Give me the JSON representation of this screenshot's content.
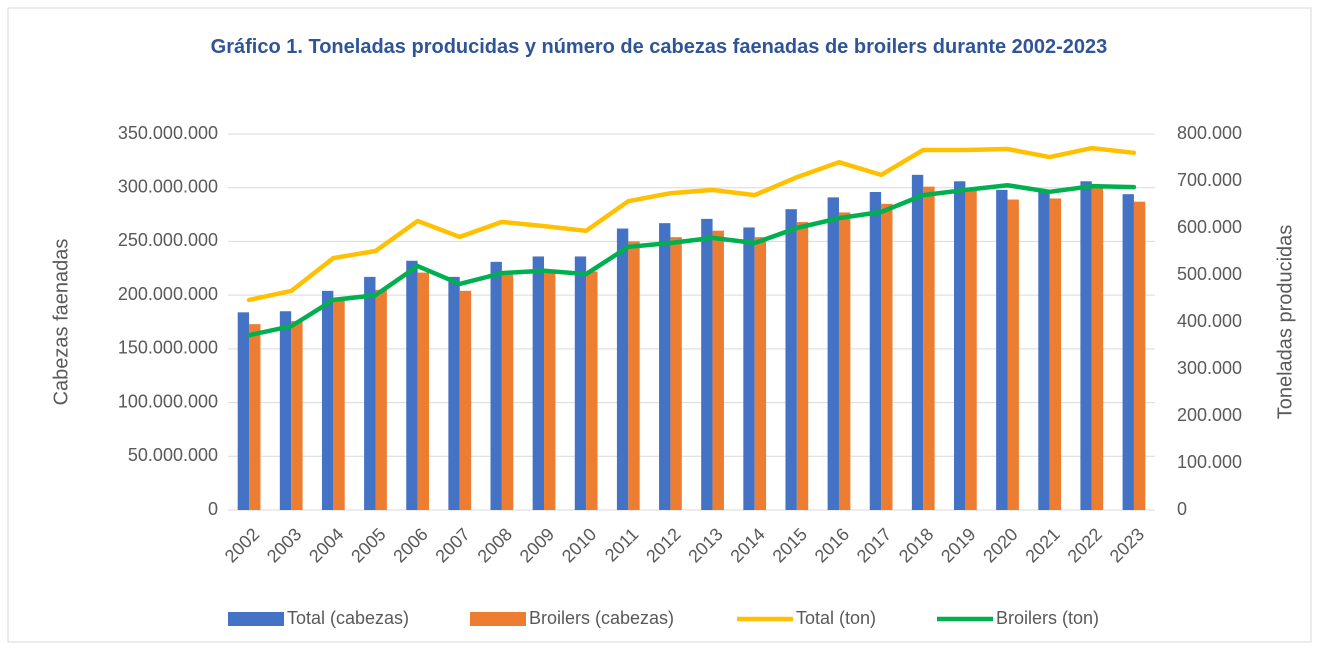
{
  "chart_data": {
    "type": "bar",
    "title": "Gráfico 1. Toneladas producidas y número de cabezas faenadas de broilers durante 2002-2023",
    "ylabel": "Cabezas faenadas",
    "y2label": "Toneladas producidas",
    "categories": [
      "2002",
      "2003",
      "2004",
      "2005",
      "2006",
      "2007",
      "2008",
      "2009",
      "2010",
      "2011",
      "2012",
      "2013",
      "2014",
      "2015",
      "2016",
      "2017",
      "2018",
      "2019",
      "2020",
      "2021",
      "2022",
      "2023"
    ],
    "ylim": [
      0,
      350000000
    ],
    "yticks": [
      0,
      {
        "value": 50000000,
        "label": "50.000.000"
      },
      {
        "value": 100000000,
        "label": "100.000.000"
      },
      {
        "value": 150000000,
        "label": "150.000.000"
      },
      {
        "value": 200000000,
        "label": "200.000.000"
      },
      {
        "value": 250000000,
        "label": "250.000.000"
      },
      {
        "value": 300000000,
        "label": "300.000.000"
      },
      {
        "value": 350000000,
        "label": "350.000.000"
      }
    ],
    "y2lim": [
      0,
      800000
    ],
    "y2ticks": [
      0,
      {
        "value": 100000,
        "label": "100.000"
      },
      {
        "value": 200000,
        "label": "200.000"
      },
      {
        "value": 300000,
        "label": "300.000"
      },
      {
        "value": 400000,
        "label": "400.000"
      },
      {
        "value": 500000,
        "label": "500.000"
      },
      {
        "value": 600000,
        "label": "600.000"
      },
      {
        "value": 700000,
        "label": "700.000"
      },
      {
        "value": 800000,
        "label": "800.000"
      }
    ],
    "grid": true,
    "legend": "bottom",
    "series": [
      {
        "name": "Total (cabezas)",
        "type": "bar",
        "color": "#4472c4",
        "values": [
          184000000,
          185000000,
          204000000,
          217000000,
          232000000,
          217000000,
          231000000,
          236000000,
          236000000,
          262000000,
          267000000,
          271000000,
          263000000,
          280000000,
          291000000,
          296000000,
          312000000,
          306000000,
          298000000,
          297000000,
          306000000,
          294000000
        ]
      },
      {
        "name": "Broilers (cabezas)",
        "type": "bar",
        "color": "#ed7d31",
        "values": [
          173000000,
          176000000,
          195000000,
          205000000,
          221000000,
          204000000,
          219000000,
          222000000,
          222000000,
          250000000,
          254000000,
          260000000,
          254000000,
          268000000,
          277000000,
          285000000,
          301000000,
          298000000,
          289000000,
          290000000,
          300000000,
          287000000
        ]
      },
      {
        "name": "Total (ton)",
        "type": "line",
        "axis": "y2",
        "color": "#ffc000",
        "values": [
          447000,
          466000,
          536000,
          551000,
          615000,
          581000,
          613000,
          604000,
          594000,
          657000,
          674000,
          681000,
          670000,
          708000,
          740000,
          713000,
          766000,
          766000,
          768000,
          751000,
          770000,
          760000
        ]
      },
      {
        "name": "Broilers (ton)",
        "type": "line",
        "axis": "y2",
        "color": "#00b050",
        "values": [
          372000,
          391000,
          447000,
          457000,
          519000,
          481000,
          504000,
          509000,
          502000,
          560000,
          568000,
          579000,
          568000,
          600000,
          621000,
          634000,
          670000,
          681000,
          691000,
          677000,
          689000,
          687000
        ]
      }
    ]
  }
}
